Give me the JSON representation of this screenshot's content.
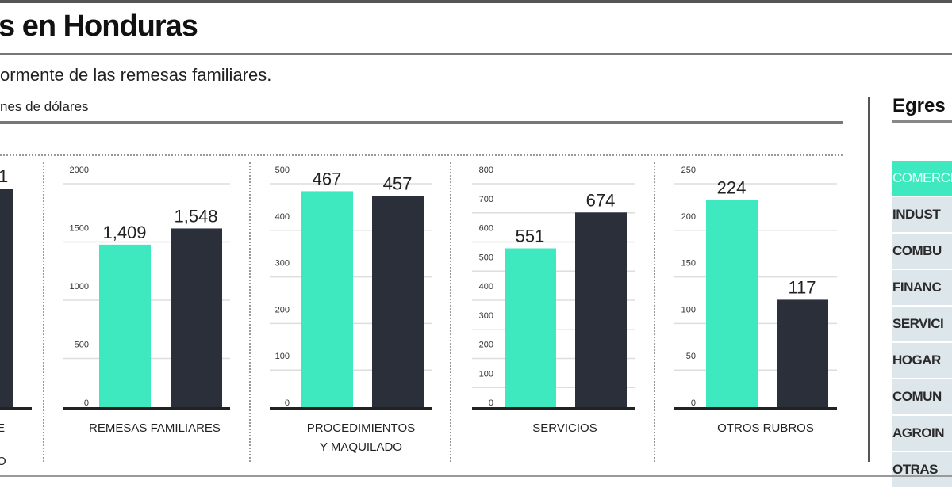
{
  "header": {
    "title": "s en Honduras",
    "subtitle": "ormente de las remesas familiares.",
    "unit": "nes de dólares"
  },
  "right_panel": {
    "title": "Egres",
    "items": [
      "COMERCIO",
      "INDUST",
      "COMBU",
      "FINANC",
      "SERVICI",
      "HOGAR",
      "COMUN",
      "AGROIN",
      "OTRAS"
    ]
  },
  "colors": {
    "series1": "#3fe9c0",
    "series2": "#2a2f3a"
  },
  "chart_data": [
    {
      "type": "bar",
      "title": "",
      "category_lines": [
        "E",
        "O"
      ],
      "partial": true,
      "values": [
        null,
        null
      ],
      "value_labels": [
        "",
        "1"
      ]
    },
    {
      "type": "bar",
      "category_lines": [
        "REMESAS FAMILIARES"
      ],
      "values": [
        1409,
        1548
      ],
      "value_labels": [
        "1,409",
        "1,548"
      ],
      "ylim": [
        0,
        2000
      ],
      "ticks": [
        0,
        500,
        1000,
        1500,
        2000
      ]
    },
    {
      "type": "bar",
      "category_lines": [
        "PROCEDIMIENTOS",
        "Y MAQUILADO"
      ],
      "values": [
        467,
        457
      ],
      "value_labels": [
        "467",
        "457"
      ],
      "ylim": [
        0,
        500
      ],
      "ticks": [
        0,
        100,
        200,
        300,
        400,
        500
      ]
    },
    {
      "type": "bar",
      "category_lines": [
        "SERVICIOS"
      ],
      "values": [
        551,
        674
      ],
      "value_labels": [
        "551",
        "674"
      ],
      "ylim": [
        0,
        800
      ],
      "ticks": [
        0,
        100,
        200,
        300,
        400,
        500,
        600,
        700,
        800
      ]
    },
    {
      "type": "bar",
      "category_lines": [
        "OTROS RUBROS"
      ],
      "values": [
        224,
        117
      ],
      "value_labels": [
        "224",
        "117"
      ],
      "ylim": [
        0,
        250
      ],
      "ticks": [
        0,
        50,
        100,
        150,
        200,
        250
      ]
    }
  ]
}
